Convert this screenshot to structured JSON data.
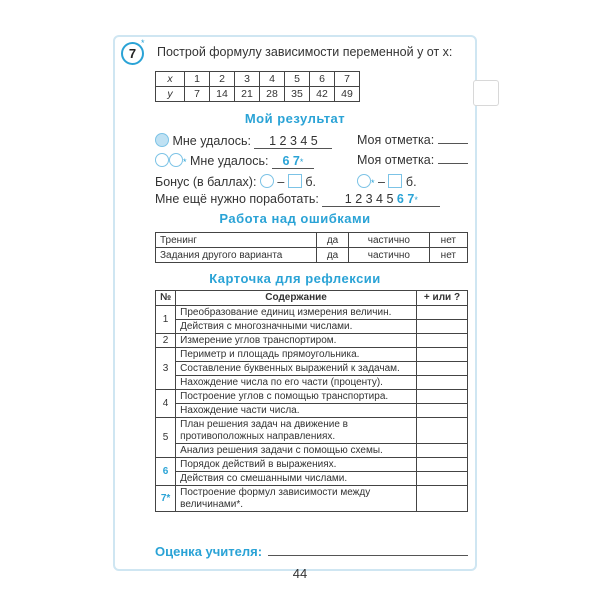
{
  "task": {
    "number": "7",
    "star": "*",
    "text": "Построй формулу зависимости переменной y от x:"
  },
  "xy_table": {
    "x": [
      "x",
      "1",
      "2",
      "3",
      "4",
      "5",
      "6",
      "7"
    ],
    "y": [
      "y",
      "7",
      "14",
      "21",
      "28",
      "35",
      "42",
      "49"
    ]
  },
  "result": {
    "title": "Мой результат",
    "row1": {
      "label": "Мне удалось:",
      "value": "1 2 3 4 5",
      "mark": "Моя отметка:"
    },
    "row2": {
      "label": "Мне удалось:",
      "value": "6 7",
      "star": "*",
      "mark": "Моя отметка:"
    },
    "bonus": {
      "label": "Бонус (в баллах):",
      "dash": "–",
      "unit": "б.",
      "star": "*"
    },
    "work": {
      "label": "Мне ещё нужно поработать:",
      "value_black": "1 2 3 4 5",
      "value_blue": "6 7",
      "star": "*"
    }
  },
  "errors": {
    "title": "Работа над ошибками",
    "rows": [
      {
        "name": "Тренинг",
        "yes": "да",
        "partial": "частично",
        "no": "нет"
      },
      {
        "name": "Задания другого варианта",
        "yes": "да",
        "partial": "частично",
        "no": "нет"
      }
    ]
  },
  "reflection": {
    "title": "Карточка для рефлексии",
    "headers": {
      "num": "№",
      "content": "Содержание",
      "mark": "+ или ?"
    },
    "rows": [
      {
        "num": "1",
        "items": [
          "Преобразование единиц измерения величин.",
          "Действия с многозначными числами."
        ]
      },
      {
        "num": "2",
        "items": [
          "Измерение углов транспортиром."
        ]
      },
      {
        "num": "3",
        "items": [
          "Периметр и площадь прямоугольника.",
          "Составление буквенных выражений к задачам.",
          "Нахождение числа по его части (проценту)."
        ]
      },
      {
        "num": "4",
        "items": [
          "Построение углов с помощью транспортира.",
          "Нахождение части числа."
        ]
      },
      {
        "num": "5",
        "items": [
          "План решения задач на движение в противоположных направлениях.",
          "Анализ решения задачи с помощью схемы."
        ]
      },
      {
        "num": "6",
        "items": [
          "Порядок действий в выражениях.",
          "Действия со смешанными числами."
        ]
      },
      {
        "num": "7*",
        "items": [
          "Построение формул зависимости между величинами*."
        ]
      }
    ]
  },
  "teacher": {
    "label": "Оценка учителя:"
  },
  "page_number": "44",
  "colors": {
    "accent": "#2aa3d6",
    "frame": "#cfe6f2"
  }
}
